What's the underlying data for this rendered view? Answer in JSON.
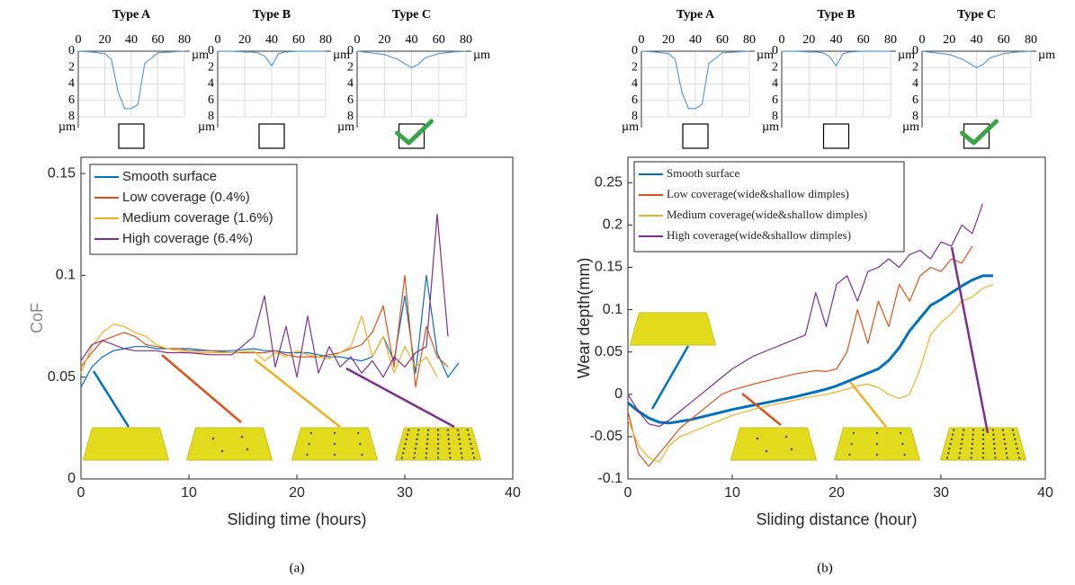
{
  "chart_data": [
    {
      "type": "line",
      "title": "Type A",
      "x": [
        0,
        10,
        20,
        25,
        30,
        35,
        40,
        45,
        50,
        60,
        70,
        80
      ],
      "xlim": [
        0,
        80
      ],
      "xticks": [
        0,
        20,
        40,
        60,
        80
      ],
      "ylim": [
        0,
        8
      ],
      "yticks": [
        0,
        2,
        4,
        6,
        8
      ],
      "y_inverted": true,
      "x_unit": "µm",
      "y_unit": "µm",
      "grid": true,
      "checked": false,
      "series": [
        {
          "color": "#5b9bd5",
          "values": [
            0,
            0.1,
            0.3,
            1,
            5,
            7,
            7,
            6.5,
            1.5,
            0.2,
            0.1,
            0
          ]
        }
      ]
    },
    {
      "type": "line",
      "title": "Type B",
      "x": [
        0,
        10,
        20,
        25,
        30,
        35,
        40,
        45,
        50,
        60,
        70,
        80
      ],
      "xlim": [
        0,
        80
      ],
      "xticks": [
        0,
        20,
        40,
        60,
        80
      ],
      "ylim": [
        0,
        8
      ],
      "yticks": [
        0,
        2,
        4,
        6,
        8
      ],
      "y_inverted": true,
      "x_unit": "µm",
      "y_unit": "µm",
      "grid": true,
      "checked": false,
      "series": [
        {
          "color": "#5b9bd5",
          "values": [
            0,
            0,
            0.1,
            0.1,
            0.2,
            0.6,
            1.8,
            0.3,
            0.1,
            0,
            0,
            0
          ]
        }
      ]
    },
    {
      "type": "line",
      "title": "Type C",
      "x": [
        0,
        10,
        20,
        25,
        30,
        35,
        40,
        45,
        50,
        60,
        70,
        80
      ],
      "xlim": [
        0,
        80
      ],
      "xticks": [
        0,
        20,
        40,
        60,
        80
      ],
      "ylim": [
        0,
        8
      ],
      "yticks": [
        0,
        2,
        4,
        6,
        8
      ],
      "y_inverted": true,
      "x_unit": "µm",
      "y_unit": "µm",
      "grid": true,
      "checked": true,
      "series": [
        {
          "color": "#5b9bd5",
          "values": [
            0,
            0.2,
            0.4,
            0.7,
            1,
            1.5,
            2,
            1.6,
            0.8,
            0.3,
            0.1,
            0
          ]
        }
      ]
    },
    {
      "type": "line",
      "caption": "(a)",
      "x_label": "Sliding time (hours)",
      "y_label": "CoF",
      "legend": "upper left",
      "x": [
        0,
        1,
        2,
        3,
        4,
        5,
        6,
        7,
        8,
        9,
        10,
        12,
        14,
        16,
        17,
        18,
        19,
        20,
        21,
        22,
        23,
        24,
        25,
        26,
        27,
        28,
        29,
        30,
        31,
        32,
        33,
        34,
        35
      ],
      "xlim": [
        0,
        40
      ],
      "xticks": [
        0,
        10,
        20,
        30,
        40
      ],
      "ylim": [
        0,
        0.158
      ],
      "yticks": [
        0,
        0.05,
        0.1,
        0.15
      ],
      "series": [
        {
          "name": "Smooth surface",
          "color": "#0072bd",
          "values": [
            0.045,
            0.055,
            0.06,
            0.063,
            0.064,
            0.065,
            0.065,
            0.064,
            0.064,
            0.064,
            0.064,
            0.063,
            0.063,
            0.064,
            0.063,
            0.063,
            0.062,
            0.062,
            0.062,
            0.061,
            0.06,
            0.06,
            0.059,
            0.058,
            0.06,
            0.07,
            0.058,
            0.09,
            0.052,
            0.1,
            0.062,
            0.05,
            0.057
          ]
        },
        {
          "name": "Low coverage (0.4%)",
          "color": "#d95319",
          "values": [
            0.055,
            0.062,
            0.068,
            0.07,
            0.072,
            0.07,
            0.066,
            0.065,
            0.064,
            0.064,
            0.063,
            0.063,
            0.062,
            0.062,
            0.062,
            0.063,
            0.061,
            0.06,
            0.06,
            0.06,
            0.061,
            0.062,
            0.064,
            0.066,
            0.072,
            0.085,
            0.055,
            0.1,
            0.045,
            0.075,
            0.06,
            0.055,
            null
          ]
        },
        {
          "name": "Medium coverage (1.6%)",
          "color": "#edb120",
          "values": [
            0.052,
            0.065,
            0.072,
            0.076,
            0.075,
            0.072,
            0.07,
            0.066,
            0.064,
            0.063,
            0.062,
            0.062,
            0.062,
            0.063,
            0.058,
            0.062,
            0.06,
            0.063,
            0.061,
            0.06,
            0.059,
            0.062,
            0.065,
            0.08,
            0.06,
            0.07,
            0.052,
            0.065,
            0.055,
            0.06,
            0.05,
            null,
            null
          ]
        },
        {
          "name": "High coverage (6.4%)",
          "color": "#7e2f8e",
          "values": [
            0.058,
            0.066,
            0.068,
            0.066,
            0.064,
            0.063,
            0.063,
            0.063,
            0.062,
            0.062,
            0.062,
            0.061,
            0.061,
            0.07,
            0.09,
            0.055,
            0.075,
            0.05,
            0.08,
            0.052,
            0.065,
            0.055,
            0.06,
            0.052,
            0.058,
            0.05,
            0.06,
            0.055,
            0.062,
            0.065,
            0.13,
            0.07,
            null
          ]
        }
      ]
    },
    {
      "type": "line",
      "title": "Type A",
      "x": [
        0,
        10,
        20,
        25,
        30,
        35,
        40,
        45,
        50,
        60,
        70,
        80
      ],
      "xlim": [
        0,
        80
      ],
      "xticks": [
        0,
        20,
        40,
        60,
        80
      ],
      "ylim": [
        0,
        8
      ],
      "yticks": [
        0,
        2,
        4,
        6,
        8
      ],
      "y_inverted": true,
      "x_unit": "µm",
      "y_unit": "µm",
      "grid": true,
      "checked": false,
      "series": [
        {
          "color": "#5b9bd5",
          "values": [
            0,
            0.1,
            0.3,
            1,
            5,
            7,
            7,
            6.5,
            1.5,
            0.2,
            0.1,
            0
          ]
        }
      ]
    },
    {
      "type": "line",
      "title": "Type B",
      "x": [
        0,
        10,
        20,
        25,
        30,
        35,
        40,
        45,
        50,
        60,
        70,
        80
      ],
      "xlim": [
        0,
        80
      ],
      "xticks": [
        0,
        20,
        40,
        60,
        80
      ],
      "ylim": [
        0,
        8
      ],
      "yticks": [
        0,
        2,
        4,
        6,
        8
      ],
      "y_inverted": true,
      "x_unit": "µm",
      "y_unit": "µm",
      "grid": true,
      "checked": false,
      "series": [
        {
          "color": "#5b9bd5",
          "values": [
            0,
            0,
            0.1,
            0.1,
            0.2,
            0.6,
            1.8,
            0.3,
            0.1,
            0,
            0,
            0
          ]
        }
      ]
    },
    {
      "type": "line",
      "title": "Type C",
      "x": [
        0,
        10,
        20,
        25,
        30,
        35,
        40,
        45,
        50,
        60,
        70,
        80
      ],
      "xlim": [
        0,
        80
      ],
      "xticks": [
        0,
        20,
        40,
        60,
        80
      ],
      "ylim": [
        0,
        8
      ],
      "yticks": [
        0,
        2,
        4,
        6,
        8
      ],
      "y_inverted": true,
      "x_unit": "µm",
      "y_unit": "µm",
      "grid": true,
      "checked": true,
      "series": [
        {
          "color": "#5b9bd5",
          "values": [
            0,
            0.2,
            0.4,
            0.7,
            1,
            1.5,
            2,
            1.6,
            0.8,
            0.3,
            0.1,
            0
          ]
        }
      ]
    },
    {
      "type": "line",
      "caption": "(b)",
      "x_label": "Sliding distance (hour)",
      "y_label": "Wear depth(mm)",
      "legend": "upper left",
      "x": [
        0,
        1,
        2,
        3,
        4,
        5,
        6,
        7,
        8,
        9,
        10,
        12,
        14,
        16,
        17,
        18,
        19,
        20,
        21,
        22,
        23,
        24,
        25,
        26,
        27,
        28,
        29,
        30,
        31,
        32,
        33,
        34,
        35
      ],
      "xlim": [
        0,
        40
      ],
      "xticks": [
        0,
        10,
        20,
        30,
        40
      ],
      "ylim": [
        -0.1,
        0.28
      ],
      "yticks": [
        -0.1,
        -0.05,
        0,
        0.05,
        0.1,
        0.15,
        0.2,
        0.25
      ],
      "series": [
        {
          "name": "Smooth surface",
          "color": "#0072bd",
          "line_width": 3,
          "values": [
            -0.01,
            -0.02,
            -0.028,
            -0.033,
            -0.034,
            -0.032,
            -0.03,
            -0.027,
            -0.024,
            -0.021,
            -0.018,
            -0.013,
            -0.008,
            -0.003,
            0,
            0.003,
            0.006,
            0.01,
            0.015,
            0.02,
            0.025,
            0.03,
            0.04,
            0.055,
            0.075,
            0.09,
            0.105,
            0.112,
            0.12,
            0.128,
            0.135,
            0.14,
            0.14
          ]
        },
        {
          "name": "Low coverage(wide&shallow dimples)",
          "color": "#d95319",
          "values": [
            -0.02,
            -0.07,
            -0.085,
            -0.07,
            -0.055,
            -0.04,
            -0.03,
            -0.02,
            -0.01,
            0,
            0.005,
            0.012,
            0.018,
            0.024,
            0.026,
            0.028,
            0.027,
            0.03,
            0.05,
            0.1,
            0.06,
            0.11,
            0.08,
            0.13,
            0.11,
            0.14,
            0.15,
            0.145,
            0.16,
            0.155,
            0.175,
            null,
            null
          ]
        },
        {
          "name": "Medium coverage(wide&shallow dimples)",
          "color": "#edb120",
          "values": [
            -0.03,
            -0.06,
            -0.075,
            -0.08,
            -0.06,
            -0.05,
            -0.045,
            -0.04,
            -0.035,
            -0.03,
            -0.025,
            -0.018,
            -0.012,
            -0.007,
            -0.004,
            -0.002,
            0,
            0.003,
            0.006,
            0.01,
            0.012,
            0.008,
            0,
            -0.005,
            0,
            0.03,
            0.07,
            0.085,
            0.095,
            0.11,
            0.115,
            0.125,
            0.13
          ]
        },
        {
          "name": "High coverage(wide&shallow dimples)",
          "color": "#7e2f8e",
          "values": [
            0,
            -0.02,
            -0.035,
            -0.038,
            -0.03,
            -0.02,
            -0.01,
            0,
            0.01,
            0.02,
            0.03,
            0.045,
            0.055,
            0.065,
            0.07,
            0.12,
            0.08,
            0.13,
            0.14,
            0.11,
            0.145,
            0.15,
            0.16,
            0.15,
            0.165,
            0.17,
            0.16,
            0.18,
            0.175,
            0.2,
            0.19,
            0.225,
            null
          ]
        }
      ]
    }
  ]
}
